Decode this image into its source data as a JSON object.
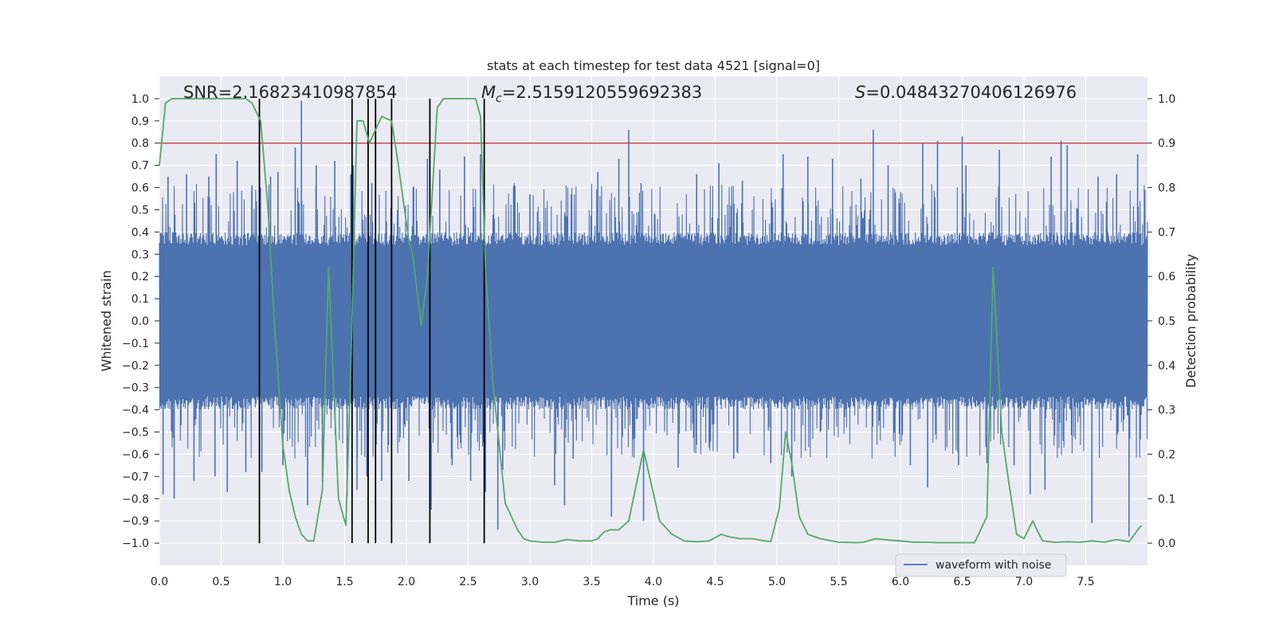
{
  "chart_data": {
    "type": "line",
    "title": "stats at each timestep for test data 4521 [signal=0]",
    "xlabel": "Time (s)",
    "ylabel": "Whitened strain",
    "y2label": "Detection probability",
    "xlim": [
      0.0,
      8.0
    ],
    "ylim": [
      -1.1,
      1.1
    ],
    "y2lim": [
      -0.05,
      1.05
    ],
    "xticks": [
      "0.0",
      "0.5",
      "1.0",
      "1.5",
      "2.0",
      "2.5",
      "3.0",
      "3.5",
      "4.0",
      "4.5",
      "5.0",
      "5.5",
      "6.0",
      "6.5",
      "7.0",
      "7.5"
    ],
    "yticks": [
      "1.0",
      "0.9",
      "0.8",
      "0.7",
      "0.6",
      "0.5",
      "0.4",
      "0.3",
      "0.2",
      "0.1",
      "0.0",
      "−0.1",
      "−0.2",
      "−0.3",
      "−0.4",
      "−0.5",
      "−0.6",
      "−0.7",
      "−0.8",
      "−0.9",
      "−1.0"
    ],
    "y2ticks": [
      "1.0",
      "0.9",
      "0.8",
      "0.7",
      "0.6",
      "0.5",
      "0.4",
      "0.3",
      "0.2",
      "0.1",
      "0.0"
    ],
    "grid": true,
    "annotations": {
      "snr": "SNR=2.16823410987854",
      "mc_symbol": "M",
      "mc_sub": "c",
      "mc_value": "=2.5159120559692383",
      "s_symbol": "S",
      "s_value": "=0.04843270406126976"
    },
    "legend": {
      "label": "waveform with noise",
      "position": "lower-right"
    },
    "threshold": {
      "axis": "right",
      "value": 0.9,
      "color": "#c44e52"
    },
    "vlines": [
      0.81,
      1.56,
      1.69,
      1.75,
      1.88,
      2.19,
      2.63
    ],
    "vline_range": [
      -1.0,
      1.0
    ],
    "waveform": {
      "name": "waveform with noise",
      "color": "#4c72b0",
      "core_amplitude": 0.4,
      "spikes": [
        [
          0.03,
          -0.78
        ],
        [
          0.07,
          0.65
        ],
        [
          0.12,
          -0.8
        ],
        [
          0.22,
          0.66
        ],
        [
          0.28,
          -0.72
        ],
        [
          0.4,
          0.65
        ],
        [
          0.45,
          -0.7
        ],
        [
          0.46,
          0.75
        ],
        [
          0.55,
          -0.77
        ],
        [
          0.63,
          0.72
        ],
        [
          0.7,
          -0.68
        ],
        [
          0.75,
          0.61
        ],
        [
          0.81,
          0.78
        ],
        [
          0.83,
          -0.68
        ],
        [
          0.9,
          0.65
        ],
        [
          0.96,
          0.67
        ],
        [
          1.0,
          -0.65
        ],
        [
          1.1,
          0.78
        ],
        [
          1.15,
          0.99
        ],
        [
          1.2,
          -0.83
        ],
        [
          1.27,
          0.7
        ],
        [
          1.32,
          -0.72
        ],
        [
          1.42,
          0.72
        ],
        [
          1.52,
          -0.79
        ],
        [
          1.55,
          0.66
        ],
        [
          1.57,
          0.7
        ],
        [
          1.6,
          -0.76
        ],
        [
          1.68,
          -0.7
        ],
        [
          1.72,
          0.62
        ],
        [
          1.8,
          -0.72
        ],
        [
          1.88,
          0.6
        ],
        [
          2.02,
          -0.72
        ],
        [
          2.17,
          0.73
        ],
        [
          2.2,
          -0.85
        ],
        [
          2.27,
          0.68
        ],
        [
          2.37,
          -0.65
        ],
        [
          2.47,
          0.74
        ],
        [
          2.52,
          -0.72
        ],
        [
          2.6,
          0.75
        ],
        [
          2.64,
          -0.77
        ],
        [
          2.74,
          -0.94
        ],
        [
          2.78,
          -0.67
        ],
        [
          3.0,
          0.57
        ],
        [
          3.2,
          -0.74
        ],
        [
          3.28,
          -0.83
        ],
        [
          3.35,
          -0.62
        ],
        [
          3.55,
          0.67
        ],
        [
          3.66,
          -0.88
        ],
        [
          3.72,
          0.73
        ],
        [
          3.8,
          0.86
        ],
        [
          3.9,
          0.62
        ],
        [
          3.92,
          -0.9
        ],
        [
          4.2,
          -0.66
        ],
        [
          4.35,
          0.66
        ],
        [
          4.53,
          0.71
        ],
        [
          4.65,
          -0.62
        ],
        [
          4.72,
          0.63
        ],
        [
          4.95,
          -0.64
        ],
        [
          5.05,
          0.75
        ],
        [
          5.12,
          -0.7
        ],
        [
          5.25,
          0.74
        ],
        [
          5.45,
          0.73
        ],
        [
          5.68,
          0.64
        ],
        [
          5.78,
          0.86
        ],
        [
          5.9,
          0.7
        ],
        [
          6.08,
          -0.65
        ],
        [
          6.18,
          0.8
        ],
        [
          6.22,
          -0.75
        ],
        [
          6.3,
          0.81
        ],
        [
          6.47,
          -0.65
        ],
        [
          6.5,
          0.83
        ],
        [
          6.53,
          0.7
        ],
        [
          6.7,
          -0.64
        ],
        [
          6.8,
          0.77
        ],
        [
          6.92,
          -0.65
        ],
        [
          7.05,
          -0.78
        ],
        [
          7.17,
          -0.76
        ],
        [
          7.22,
          0.74
        ],
        [
          7.3,
          0.81
        ],
        [
          7.35,
          0.79
        ],
        [
          7.55,
          -0.91
        ],
        [
          7.6,
          0.65
        ],
        [
          7.75,
          0.66
        ],
        [
          7.85,
          -0.97
        ],
        [
          7.92,
          0.75
        ]
      ]
    },
    "probability": {
      "name": "Detection probability",
      "color": "#55a868",
      "axis": "right",
      "x": [
        0.0,
        0.05,
        0.1,
        0.15,
        0.2,
        0.3,
        0.4,
        0.5,
        0.6,
        0.7,
        0.75,
        0.82,
        0.88,
        0.93,
        1.0,
        1.05,
        1.1,
        1.15,
        1.2,
        1.25,
        1.32,
        1.37,
        1.45,
        1.51,
        1.55,
        1.6,
        1.65,
        1.7,
        1.75,
        1.8,
        1.88,
        1.93,
        2.02,
        2.05,
        2.12,
        2.17,
        2.25,
        2.3,
        2.4,
        2.5,
        2.56,
        2.6,
        2.64,
        2.7,
        2.8,
        2.9,
        2.95,
        3.0,
        3.1,
        3.2,
        3.3,
        3.4,
        3.5,
        3.55,
        3.6,
        3.65,
        3.72,
        3.8,
        3.92,
        4.05,
        4.15,
        4.25,
        4.35,
        4.45,
        4.55,
        4.6,
        4.7,
        4.8,
        4.9,
        4.95,
        5.02,
        5.07,
        5.12,
        5.18,
        5.25,
        5.35,
        5.5,
        5.65,
        5.7,
        5.8,
        5.9,
        6.0,
        6.1,
        6.2,
        6.3,
        6.4,
        6.5,
        6.6,
        6.7,
        6.75,
        6.82,
        6.87,
        6.94,
        7.0,
        7.07,
        7.15,
        7.25,
        7.35,
        7.45,
        7.55,
        7.65,
        7.75,
        7.85,
        7.95
      ],
      "values": [
        0.85,
        0.99,
        1.0,
        1.0,
        1.0,
        1.0,
        1.0,
        1.0,
        1.0,
        1.0,
        0.99,
        0.95,
        0.75,
        0.5,
        0.22,
        0.12,
        0.06,
        0.02,
        0.005,
        0.005,
        0.12,
        0.62,
        0.1,
        0.04,
        0.4,
        0.95,
        0.95,
        0.9,
        0.93,
        0.96,
        0.95,
        0.86,
        0.68,
        0.65,
        0.49,
        0.6,
        0.98,
        1.0,
        1.0,
        1.0,
        1.0,
        0.96,
        0.62,
        0.36,
        0.09,
        0.03,
        0.01,
        0.005,
        0.002,
        0.002,
        0.008,
        0.005,
        0.005,
        0.01,
        0.025,
        0.03,
        0.03,
        0.05,
        0.21,
        0.05,
        0.02,
        0.005,
        0.003,
        0.005,
        0.02,
        0.015,
        0.01,
        0.01,
        0.005,
        0.003,
        0.08,
        0.25,
        0.18,
        0.06,
        0.02,
        0.01,
        0.002,
        0.001,
        0.002,
        0.01,
        0.007,
        0.005,
        0.002,
        0.002,
        0.001,
        0.001,
        0.001,
        0.001,
        0.06,
        0.62,
        0.25,
        0.15,
        0.02,
        0.01,
        0.05,
        0.005,
        0.002,
        0.003,
        0.002,
        0.005,
        0.002,
        0.008,
        0.003,
        0.04
      ]
    }
  }
}
